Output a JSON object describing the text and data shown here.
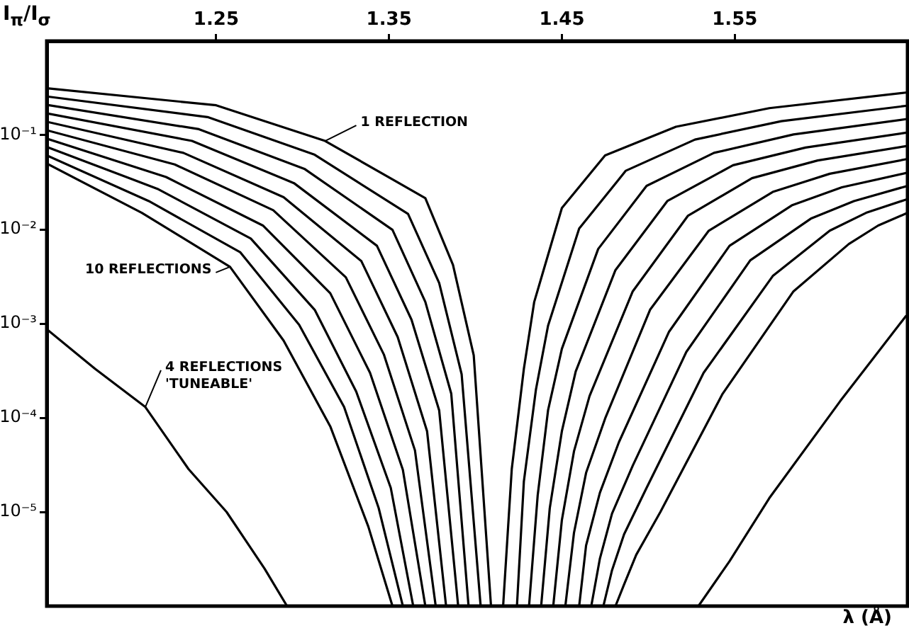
{
  "chart_data": {
    "type": "line",
    "ylabel": "I$_{π}$/I$_{σ}$",
    "xlabel": "λ (Å)",
    "xlim": [
      1.152,
      1.65
    ],
    "xticks": [
      1.25,
      1.35,
      1.45,
      1.55
    ],
    "ylim": [
      1e-06,
      1
    ],
    "yticks": [
      {
        "value": 0.1,
        "label": "10⁻¹"
      },
      {
        "value": 0.01,
        "label": "10⁻²"
      },
      {
        "value": 0.001,
        "label": "10⁻³"
      },
      {
        "value": 0.0001,
        "label": "10⁻⁴"
      },
      {
        "value": 1e-05,
        "label": "10⁻⁵"
      }
    ],
    "log": "y",
    "grid": false,
    "legend": false,
    "marker": "none",
    "line_style": "solid",
    "annotations": [
      {
        "text": "1 REFLECTION",
        "x": 1.313,
        "y": 0.087
      },
      {
        "text": "10 REFLECTIONS",
        "x": 1.258,
        "y": 0.004
      },
      {
        "text": "4 REFLECTIONS 'TUNEABLE'",
        "x": 1.209,
        "y": 0.00013
      }
    ],
    "series": [
      {
        "color": "#000000",
        "x": [
          1.152,
          1.25,
          1.313,
          1.371,
          1.387,
          1.399,
          1.409
        ],
        "values": [
          0.316,
          0.208,
          0.087,
          0.0215,
          0.0042,
          0.00046,
          1e-06
        ]
      },
      {
        "color": "#000000",
        "x": [
          1.152,
          1.245,
          1.307,
          1.361,
          1.379,
          1.392,
          1.403
        ],
        "values": [
          0.258,
          0.156,
          0.062,
          0.0146,
          0.0027,
          0.00029,
          1e-06
        ]
      },
      {
        "color": "#000000",
        "x": [
          1.152,
          1.24,
          1.301,
          1.352,
          1.371,
          1.386,
          1.396
        ],
        "values": [
          0.21,
          0.116,
          0.044,
          0.0099,
          0.0017,
          0.00018,
          1e-06
        ]
      },
      {
        "color": "#000000",
        "x": [
          1.152,
          1.236,
          1.295,
          1.343,
          1.363,
          1.379,
          1.39
        ],
        "values": [
          0.171,
          0.087,
          0.031,
          0.0067,
          0.0011,
          0.00012,
          1e-06
        ]
      },
      {
        "color": "#000000",
        "x": [
          1.152,
          1.231,
          1.289,
          1.334,
          1.355,
          1.372,
          1.383
        ],
        "values": [
          0.139,
          0.065,
          0.022,
          0.0046,
          0.00072,
          7.2e-05,
          1e-06
        ]
      },
      {
        "color": "#000000",
        "x": [
          1.152,
          1.226,
          1.283,
          1.325,
          1.347,
          1.365,
          1.377
        ],
        "values": [
          0.113,
          0.049,
          0.016,
          0.0031,
          0.00047,
          4.5e-05,
          1e-06
        ]
      },
      {
        "color": "#000000",
        "x": [
          1.152,
          1.221,
          1.277,
          1.316,
          1.339,
          1.358,
          1.371
        ],
        "values": [
          0.092,
          0.036,
          0.011,
          0.0021,
          0.0003,
          2.8e-05,
          1e-06
        ]
      },
      {
        "color": "#000000",
        "x": [
          1.152,
          1.216,
          1.27,
          1.307,
          1.331,
          1.351,
          1.364
        ],
        "values": [
          0.075,
          0.027,
          0.008,
          0.0014,
          0.00019,
          1.8e-05,
          1e-06
        ]
      },
      {
        "color": "#000000",
        "x": [
          1.152,
          1.211,
          1.264,
          1.298,
          1.324,
          1.344,
          1.358
        ],
        "values": [
          0.061,
          0.02,
          0.0057,
          0.00097,
          0.00013,
          1.1e-05,
          1e-06
        ]
      },
      {
        "color": "#000000",
        "x": [
          1.152,
          1.207,
          1.258,
          1.289,
          1.316,
          1.338,
          1.352
        ],
        "values": [
          0.05,
          0.015,
          0.004,
          0.00066,
          8.1e-05,
          7e-06,
          1e-06
        ]
      },
      {
        "color": "#000000",
        "x": [
          1.416,
          1.421,
          1.428,
          1.434,
          1.45,
          1.475,
          1.516,
          1.57,
          1.65
        ],
        "values": [
          1e-06,
          2.85e-05,
          0.00033,
          0.0017,
          0.0169,
          0.061,
          0.123,
          0.194,
          0.285
        ]
      },
      {
        "color": "#000000",
        "x": [
          1.424,
          1.428,
          1.435,
          1.442,
          1.46,
          1.487,
          1.527,
          1.577,
          1.65
        ],
        "values": [
          1e-06,
          2.1e-05,
          0.0002,
          0.00095,
          0.0102,
          0.042,
          0.09,
          0.141,
          0.206
        ]
      },
      {
        "color": "#000000",
        "x": [
          1.431,
          1.436,
          1.442,
          1.45,
          1.471,
          1.499,
          1.538,
          1.584,
          1.65
        ],
        "values": [
          1e-06,
          1.5e-05,
          0.00012,
          0.00054,
          0.0062,
          0.029,
          0.065,
          0.102,
          0.149
        ]
      },
      {
        "color": "#000000",
        "x": [
          1.438,
          1.443,
          1.45,
          1.458,
          1.481,
          1.511,
          1.549,
          1.591,
          1.65
        ],
        "values": [
          1e-06,
          1.1e-05,
          7.2e-05,
          0.00031,
          0.0037,
          0.02,
          0.048,
          0.074,
          0.107
        ]
      },
      {
        "color": "#000000",
        "x": [
          1.445,
          1.45,
          1.457,
          1.466,
          1.491,
          1.523,
          1.56,
          1.598,
          1.65
        ],
        "values": [
          1e-06,
          8.2e-06,
          4.4e-05,
          0.00017,
          0.0022,
          0.014,
          0.035,
          0.054,
          0.077
        ]
      },
      {
        "color": "#000000",
        "x": [
          1.452,
          1.457,
          1.464,
          1.475,
          1.501,
          1.535,
          1.572,
          1.605,
          1.65
        ],
        "values": [
          1e-06,
          6e-06,
          2.6e-05,
          9.8e-05,
          0.0014,
          0.0097,
          0.025,
          0.039,
          0.056
        ]
      },
      {
        "color": "#000000",
        "x": [
          1.46,
          1.464,
          1.472,
          1.483,
          1.512,
          1.547,
          1.583,
          1.612,
          1.65
        ],
        "values": [
          1e-06,
          4.4e-06,
          1.6e-05,
          5.5e-05,
          0.00082,
          0.0067,
          0.018,
          0.028,
          0.04
        ]
      },
      {
        "color": "#000000",
        "x": [
          1.467,
          1.472,
          1.479,
          1.491,
          1.522,
          1.559,
          1.594,
          1.619,
          1.65
        ],
        "values": [
          1e-06,
          3.2e-06,
          9.6e-06,
          3.1e-05,
          0.0005,
          0.0047,
          0.013,
          0.02,
          0.029
        ]
      },
      {
        "color": "#000000",
        "x": [
          1.474,
          1.479,
          1.486,
          1.499,
          1.532,
          1.572,
          1.605,
          1.626,
          1.65
        ],
        "values": [
          1e-06,
          2.4e-06,
          5.8e-06,
          1.8e-05,
          0.0003,
          0.0032,
          0.0097,
          0.015,
          0.021
        ]
      },
      {
        "color": "#000000",
        "x": [
          1.481,
          1.486,
          1.493,
          1.507,
          1.543,
          1.584,
          1.616,
          1.633,
          1.65
        ],
        "values": [
          1e-06,
          1.7e-06,
          3.5e-06,
          1e-05,
          0.00018,
          0.0022,
          0.007,
          0.011,
          0.015
        ]
      },
      {
        "color": "#000000",
        "x": [
          1.152,
          1.18,
          1.209,
          1.234,
          1.256,
          1.278,
          1.291
        ],
        "values": [
          0.00087,
          0.00033,
          0.00013,
          2.85e-05,
          1e-05,
          2.5e-06,
          1e-06
        ]
      },
      {
        "color": "#000000",
        "x": [
          1.529,
          1.547,
          1.57,
          1.611,
          1.649
        ],
        "values": [
          1e-06,
          3e-06,
          1.4e-05,
          0.00015,
          0.0012
        ]
      }
    ]
  }
}
